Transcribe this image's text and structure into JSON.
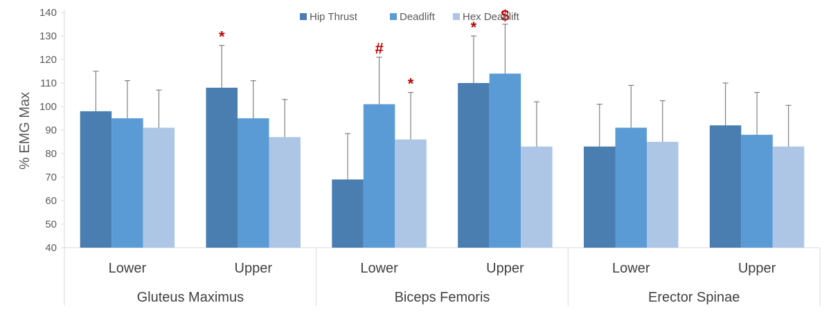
{
  "chart_data": {
    "type": "bar",
    "ylabel": "% EMG Max",
    "ylim": [
      40,
      140
    ],
    "yticks": [
      40,
      50,
      60,
      70,
      80,
      90,
      100,
      110,
      120,
      130,
      140
    ],
    "grid": false,
    "legend_position": "top-center",
    "groups": [
      {
        "name": "Gluteus Maximus",
        "subgroups": [
          "Lower",
          "Upper"
        ]
      },
      {
        "name": "Biceps Femoris",
        "subgroups": [
          "Lower",
          "Upper"
        ]
      },
      {
        "name": "Erector Spinae",
        "subgroups": [
          "Lower",
          "Upper"
        ]
      }
    ],
    "categories": [
      "Lower",
      "Upper",
      "Lower",
      "Upper",
      "Lower",
      "Upper"
    ],
    "series": [
      {
        "name": "Hip Thrust",
        "color": "#4a7db0",
        "values": [
          98,
          108,
          69,
          110,
          83,
          92
        ],
        "error_top": [
          115,
          126,
          88.5,
          130,
          101,
          110
        ]
      },
      {
        "name": "Deadlift",
        "color": "#5b9bd5",
        "values": [
          95,
          95,
          101,
          114,
          91,
          88
        ],
        "error_top": [
          111,
          111,
          121,
          135,
          109,
          106
        ]
      },
      {
        "name": "Hex Deadlift",
        "color": "#adc6e6",
        "values": [
          91,
          87,
          86,
          83,
          85,
          83
        ],
        "error_top": [
          107,
          103,
          106,
          102,
          102.5,
          100.5
        ]
      }
    ],
    "annotations": [
      {
        "category_index": 1,
        "series_index": 0,
        "text": "*"
      },
      {
        "category_index": 2,
        "series_index": 1,
        "text": "#"
      },
      {
        "category_index": 2,
        "series_index": 2,
        "text": "*"
      },
      {
        "category_index": 3,
        "series_index": 0,
        "text": "*"
      },
      {
        "category_index": 3,
        "series_index": 1,
        "text": "$"
      }
    ]
  }
}
